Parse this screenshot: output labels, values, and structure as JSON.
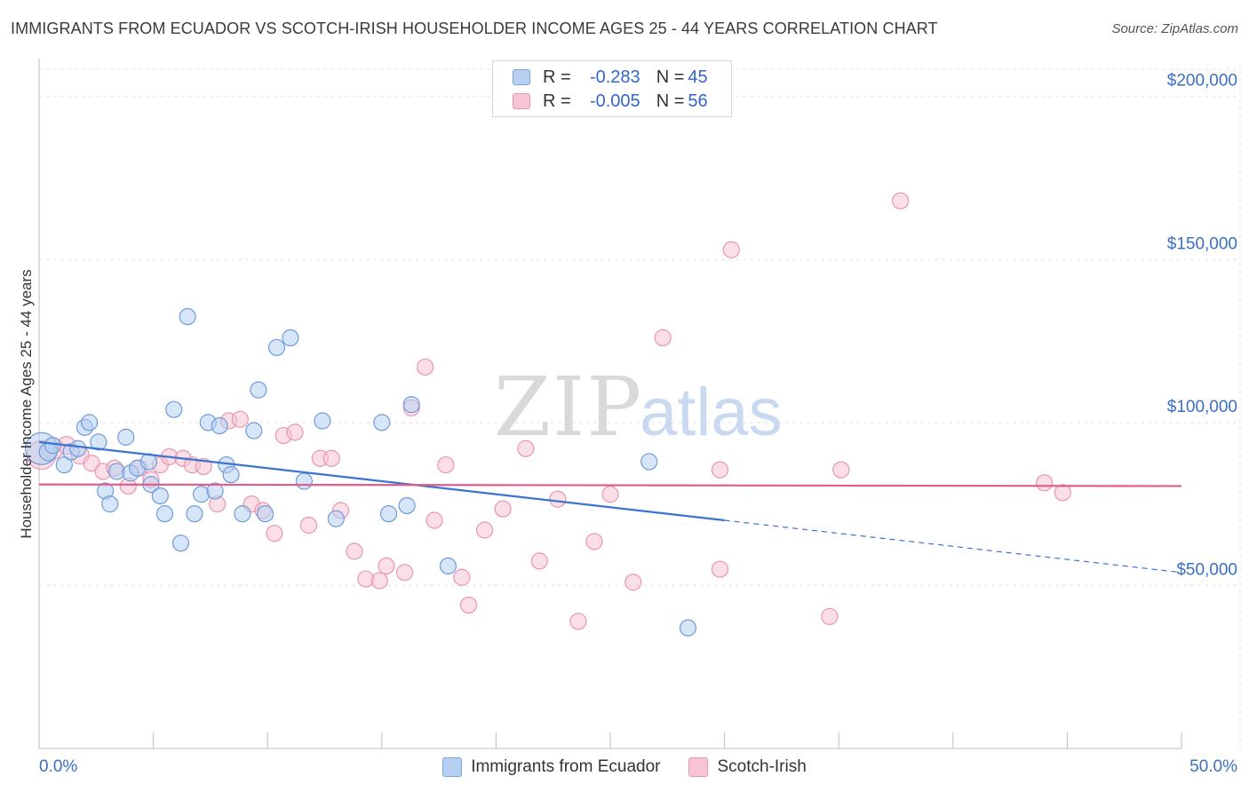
{
  "title": "IMMIGRANTS FROM ECUADOR VS SCOTCH-IRISH HOUSEHOLDER INCOME AGES 25 - 44 YEARS CORRELATION CHART",
  "source": "Source: ZipAtlas.com",
  "watermark": {
    "zip": "ZIP",
    "atlas": "atlas"
  },
  "legend": {
    "blue": {
      "r_label": "R =",
      "r_value": "-0.283",
      "n_label": "N =",
      "n_value": "45"
    },
    "pink": {
      "r_label": "R =",
      "r_value": "-0.005",
      "n_label": "N =",
      "n_value": "56"
    }
  },
  "colors": {
    "blue_fill": "#b7d0f2",
    "blue_stroke": "#6f9bd8",
    "blue_line": "#3a74cf",
    "pink_fill": "#f8c4d4",
    "pink_stroke": "#e995b0",
    "pink_line": "#e05d8c",
    "tick_label": "#3a6fc4",
    "grid": "#e3e3e3"
  },
  "chart_data": {
    "type": "scatter",
    "title": "IMMIGRANTS FROM ECUADOR VS SCOTCH-IRISH HOUSEHOLDER INCOME AGES 25 - 44 YEARS CORRELATION CHART",
    "xlabel": "",
    "ylabel": "Householder Income Ages 25 - 44 years",
    "xlim": [
      0,
      50
    ],
    "ylim": [
      0,
      210000
    ],
    "x_tick_labels": [
      "0.0%",
      "50.0%"
    ],
    "y_ticks": [
      {
        "value": 50000,
        "label": "$50,000"
      },
      {
        "value": 100000,
        "label": "$100,000"
      },
      {
        "value": 150000,
        "label": "$150,000"
      },
      {
        "value": 200000,
        "label": "$200,000"
      }
    ],
    "series": [
      {
        "name": "Immigrants from Ecuador",
        "color": "blue",
        "trend": {
          "x0": 0,
          "y0": 94000,
          "x1": 30,
          "y1": 70000,
          "dash_to_x": 50,
          "dash_to_y": 54000
        },
        "points": [
          [
            0.1,
            92000,
            18
          ],
          [
            0.4,
            91000,
            10
          ],
          [
            0.6,
            93000,
            9
          ],
          [
            1.1,
            87000,
            9
          ],
          [
            1.4,
            91000,
            9
          ],
          [
            1.7,
            92000,
            9
          ],
          [
            2.0,
            98500,
            9
          ],
          [
            2.2,
            100000,
            9
          ],
          [
            2.6,
            94000,
            9
          ],
          [
            2.9,
            79000,
            9
          ],
          [
            3.1,
            75000,
            9
          ],
          [
            3.4,
            85000,
            9
          ],
          [
            3.8,
            95500,
            9
          ],
          [
            4.0,
            84500,
            9
          ],
          [
            4.3,
            86000,
            9
          ],
          [
            4.8,
            88000,
            9
          ],
          [
            4.9,
            81000,
            9
          ],
          [
            5.3,
            77500,
            9
          ],
          [
            5.5,
            72000,
            9
          ],
          [
            5.9,
            104000,
            9
          ],
          [
            6.2,
            63000,
            9
          ],
          [
            6.5,
            132500,
            9
          ],
          [
            6.8,
            72000,
            9
          ],
          [
            7.1,
            78000,
            9
          ],
          [
            7.4,
            100000,
            9
          ],
          [
            7.7,
            79000,
            9
          ],
          [
            7.9,
            99000,
            9
          ],
          [
            8.2,
            87000,
            9
          ],
          [
            8.4,
            84000,
            9
          ],
          [
            8.9,
            72000,
            9
          ],
          [
            9.4,
            97500,
            9
          ],
          [
            9.6,
            110000,
            9
          ],
          [
            9.9,
            72000,
            9
          ],
          [
            10.4,
            123000,
            9
          ],
          [
            11.0,
            126000,
            9
          ],
          [
            11.6,
            82000,
            9
          ],
          [
            12.4,
            100500,
            9
          ],
          [
            13.0,
            70500,
            9
          ],
          [
            15.0,
            100000,
            9
          ],
          [
            15.3,
            72000,
            9
          ],
          [
            16.1,
            74500,
            9
          ],
          [
            16.3,
            105500,
            9
          ],
          [
            17.9,
            56000,
            9
          ],
          [
            26.7,
            88000,
            9
          ],
          [
            28.4,
            37000,
            9
          ]
        ]
      },
      {
        "name": "Scotch-Irish",
        "color": "pink",
        "trend": {
          "x0": 0,
          "y0": 81000,
          "x1": 50,
          "y1": 80500
        },
        "points": [
          [
            0.1,
            90000,
            16
          ],
          [
            0.6,
            92000,
            12
          ],
          [
            1.2,
            93000,
            10
          ],
          [
            1.8,
            90000,
            10
          ],
          [
            2.3,
            87500,
            9
          ],
          [
            2.8,
            85000,
            9
          ],
          [
            3.3,
            86000,
            9
          ],
          [
            3.9,
            80500,
            9
          ],
          [
            4.4,
            86000,
            9
          ],
          [
            4.9,
            82500,
            9
          ],
          [
            5.3,
            87000,
            9
          ],
          [
            5.7,
            89500,
            9
          ],
          [
            6.3,
            89000,
            9
          ],
          [
            6.7,
            87000,
            9
          ],
          [
            7.2,
            86500,
            9
          ],
          [
            7.8,
            75000,
            9
          ],
          [
            8.3,
            100500,
            9
          ],
          [
            8.8,
            101000,
            9
          ],
          [
            9.3,
            75000,
            9
          ],
          [
            9.8,
            73000,
            9
          ],
          [
            10.3,
            66000,
            9
          ],
          [
            10.7,
            96000,
            9
          ],
          [
            11.2,
            97000,
            9
          ],
          [
            11.8,
            68500,
            9
          ],
          [
            12.3,
            89000,
            9
          ],
          [
            12.8,
            89000,
            9
          ],
          [
            13.2,
            73000,
            9
          ],
          [
            13.8,
            60500,
            9
          ],
          [
            14.3,
            52000,
            9
          ],
          [
            14.9,
            51500,
            9
          ],
          [
            15.2,
            56000,
            9
          ],
          [
            16.0,
            54000,
            9
          ],
          [
            16.3,
            104500,
            9
          ],
          [
            16.9,
            117000,
            9
          ],
          [
            17.3,
            70000,
            9
          ],
          [
            17.8,
            87000,
            9
          ],
          [
            18.5,
            52500,
            9
          ],
          [
            18.8,
            44000,
            9
          ],
          [
            19.5,
            67000,
            9
          ],
          [
            20.3,
            73500,
            9
          ],
          [
            21.3,
            92000,
            9
          ],
          [
            21.9,
            57500,
            9
          ],
          [
            22.7,
            76500,
            9
          ],
          [
            23.6,
            39000,
            9
          ],
          [
            24.3,
            63500,
            9
          ],
          [
            25.0,
            78000,
            9
          ],
          [
            26.0,
            51000,
            9
          ],
          [
            27.3,
            126000,
            9
          ],
          [
            29.8,
            85500,
            9
          ],
          [
            29.8,
            55000,
            9
          ],
          [
            30.3,
            153000,
            9
          ],
          [
            34.6,
            40500,
            9
          ],
          [
            35.1,
            85500,
            9
          ],
          [
            37.7,
            168000,
            9
          ],
          [
            44.0,
            81500,
            9
          ],
          [
            44.8,
            78500,
            9
          ]
        ]
      }
    ]
  }
}
